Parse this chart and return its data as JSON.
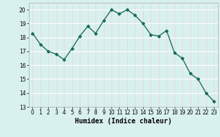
{
  "x": [
    0,
    1,
    2,
    3,
    4,
    5,
    6,
    7,
    8,
    9,
    10,
    11,
    12,
    13,
    14,
    15,
    16,
    17,
    18,
    19,
    20,
    21,
    22,
    23
  ],
  "y": [
    18.3,
    17.5,
    17.0,
    16.8,
    16.4,
    17.2,
    18.1,
    18.8,
    18.3,
    19.2,
    20.0,
    19.7,
    20.0,
    19.6,
    19.0,
    18.2,
    18.1,
    18.5,
    16.9,
    16.5,
    15.4,
    15.0,
    14.0,
    13.4
  ],
  "line_color": "#1a6b5a",
  "marker": "D",
  "marker_size": 2.0,
  "line_width": 1.0,
  "bg_color": "#d8f0ee",
  "grid_color_white": "#ffffff",
  "grid_color_pink": "#f0d0d0",
  "xlabel": "Humidex (Indice chaleur)",
  "xlabel_fontsize": 7,
  "ylim": [
    13,
    20.5
  ],
  "yticks": [
    13,
    14,
    15,
    16,
    17,
    18,
    19,
    20
  ],
  "xticks": [
    0,
    1,
    2,
    3,
    4,
    5,
    6,
    7,
    8,
    9,
    10,
    11,
    12,
    13,
    14,
    15,
    16,
    17,
    18,
    19,
    20,
    21,
    22,
    23
  ],
  "tick_fontsize": 5.5
}
